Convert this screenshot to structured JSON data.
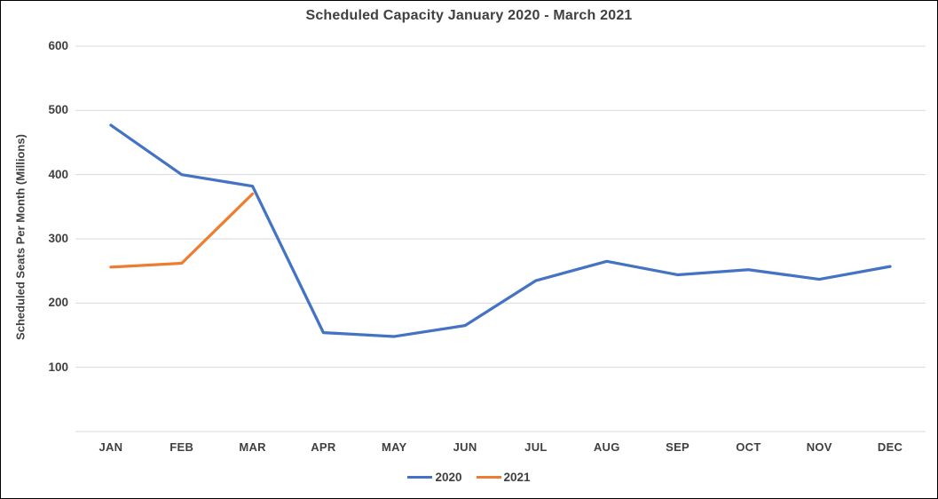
{
  "chart": {
    "title": "Scheduled Capacity January 2020 - March 2021",
    "y_axis_title": "Scheduled Seats Per Month (Millions)"
  },
  "chart_data": {
    "type": "line",
    "title": "Scheduled Capacity January 2020 - March 2021",
    "xlabel": "",
    "ylabel": "Scheduled Seats Per Month (Millions)",
    "categories": [
      "JAN",
      "FEB",
      "MAR",
      "APR",
      "MAY",
      "JUN",
      "JUL",
      "AUG",
      "SEP",
      "OCT",
      "NOV",
      "DEC"
    ],
    "series": [
      {
        "name": "2020",
        "color": "#4472C4",
        "values": [
          477,
          400,
          382,
          154,
          148,
          165,
          235,
          265,
          244,
          252,
          237,
          257
        ]
      },
      {
        "name": "2021",
        "color": "#ED7D31",
        "values": [
          256,
          262,
          370
        ]
      }
    ],
    "ylim": [
      0,
      600
    ],
    "y_ticks": [
      100,
      200,
      300,
      400,
      500,
      600
    ],
    "grid": true,
    "legend_position": "bottom-center"
  },
  "colors": {
    "text": "#404040",
    "gridline": "#D9D9D9",
    "background": "#FFFFFF",
    "frame_border": "#000000",
    "series_2020": "#4472C4",
    "series_2021": "#ED7D31"
  }
}
